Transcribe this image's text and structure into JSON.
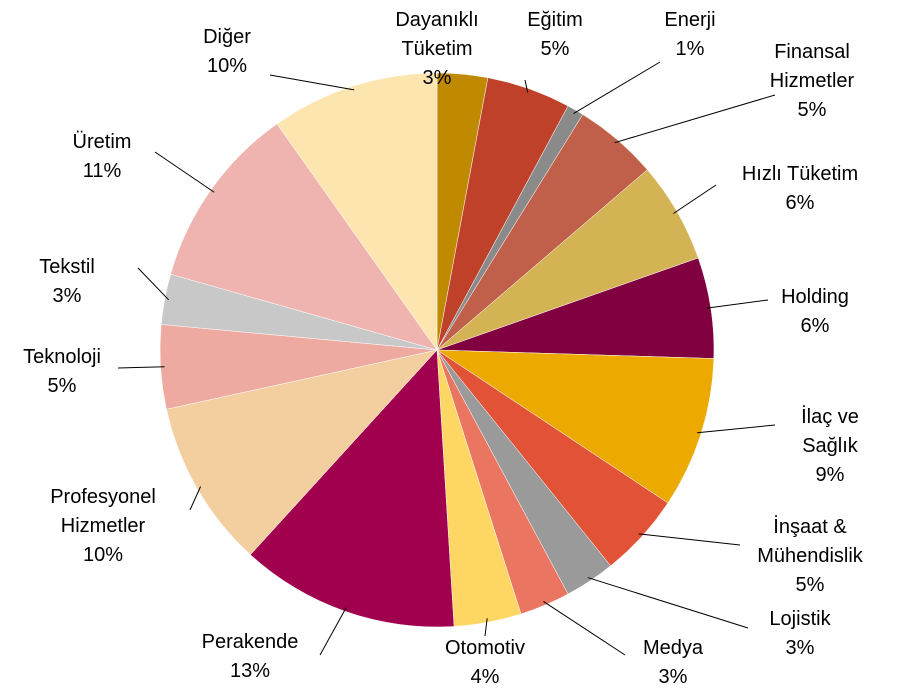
{
  "chart_data": {
    "type": "pie",
    "categories": [
      "Dayanıklı Tüketim",
      "Eğitim",
      "Enerji",
      "Finansal Hizmetler",
      "Hızlı Tüketim",
      "Holding",
      "İlaç ve Sağlık",
      "İnşaat & Mühendislik",
      "Lojistik",
      "Medya",
      "Otomotiv",
      "Perakende",
      "Profesyonel Hizmetler",
      "Teknoloji",
      "Tekstil",
      "Üretim",
      "Diğer"
    ],
    "values": [
      3,
      5,
      1,
      5,
      6,
      6,
      9,
      5,
      3,
      3,
      4,
      13,
      10,
      5,
      3,
      11,
      10
    ],
    "value_labels": [
      "3%",
      "5%",
      "1%",
      "5%",
      "6%",
      "6%",
      "9%",
      "5%",
      "3%",
      "3%",
      "4%",
      "13%",
      "10%",
      "5%",
      "3%",
      "11%",
      "10%"
    ],
    "colors": [
      "#c08a00",
      "#c0412a",
      "#8a8a8a",
      "#c0604a",
      "#d4b355",
      "#800040",
      "#ecaa00",
      "#e25237",
      "#9a9a9a",
      "#ea7560",
      "#fdd663",
      "#a0004e",
      "#f3cfa0",
      "#eeaaa0",
      "#c8c8c8",
      "#f0b4b0",
      "#fde5b0"
    ]
  }
}
